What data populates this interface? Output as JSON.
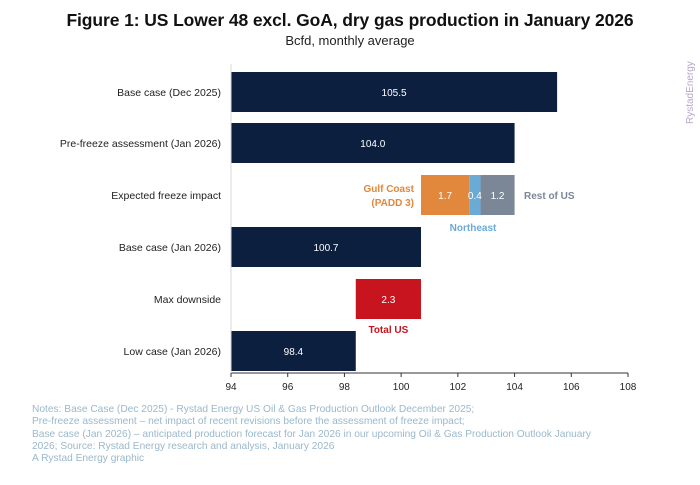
{
  "header": {
    "title": "Figure 1: US Lower 48 excl. GoA, dry gas production in January 2026",
    "subtitle": "Bcfd, monthly average",
    "brand": "RystadEnergy"
  },
  "chart_data": {
    "type": "bar",
    "orientation": "horizontal",
    "xlim": [
      94,
      108
    ],
    "xticks": [
      94,
      96,
      98,
      100,
      102,
      104,
      106,
      108
    ],
    "categories": [
      "Base case (Dec 2025)",
      "Pre-freeze assessment (Jan 2026)",
      "Expected freeze impact",
      "Base case (Jan 2026)",
      "Max downside",
      "Low case (Jan 2026)"
    ],
    "bars": [
      {
        "category": "Base case (Dec 2025)",
        "start": 94,
        "end": 105.5,
        "label": "105.5",
        "color": "#0c1f3f"
      },
      {
        "category": "Pre-freeze assessment (Jan 2026)",
        "start": 94,
        "end": 104.0,
        "label": "104.0",
        "color": "#0c1f3f"
      },
      {
        "category": "Expected freeze impact",
        "start": 100.7,
        "end": 102.4,
        "label": "1.7",
        "color": "#e1883d",
        "series": "Gulf Coast (PADD 3)"
      },
      {
        "category": "Expected freeze impact",
        "start": 102.4,
        "end": 102.8,
        "label": "0.4",
        "color": "#6aaad6",
        "series": "Northeast"
      },
      {
        "category": "Expected freeze impact",
        "start": 102.8,
        "end": 104.0,
        "label": "1.2",
        "color": "#7b8696",
        "series": "Rest of US"
      },
      {
        "category": "Base case (Jan 2026)",
        "start": 94,
        "end": 100.7,
        "label": "100.7",
        "color": "#0c1f3f"
      },
      {
        "category": "Max downside",
        "start": 98.4,
        "end": 100.7,
        "label": "2.3",
        "color": "#c8141e",
        "series": "Total US"
      },
      {
        "category": "Low case (Jan 2026)",
        "start": 94,
        "end": 98.4,
        "label": "98.4",
        "color": "#0c1f3f"
      }
    ],
    "annotations": {
      "gulf_coast_line1": "Gulf Coast",
      "gulf_coast_line2": "(PADD 3)",
      "northeast": "Northeast",
      "rest_of_us": "Rest of US",
      "total_us": "Total US"
    },
    "colors": {
      "base": "#0c1f3f",
      "gulf_coast": "#e1883d",
      "northeast": "#6aaad6",
      "rest_of_us": "#7b8696",
      "total_us": "#c8141e",
      "axis": "#333333"
    }
  },
  "notes": [
    "Notes: Base Case (Dec 2025) - Rystad Energy US Oil & Gas Production Outlook December 2025;",
    "Pre-freeze assessment – net impact of recent revisions before the assessment of freeze impact;",
    "Base case (Jan 2026) – anticipated production forecast for Jan 2026 in our upcoming Oil & Gas Production Outlook January",
    "2026; Source: Rystad Energy research and analysis, January 2026",
    "A Rystad Energy graphic"
  ]
}
